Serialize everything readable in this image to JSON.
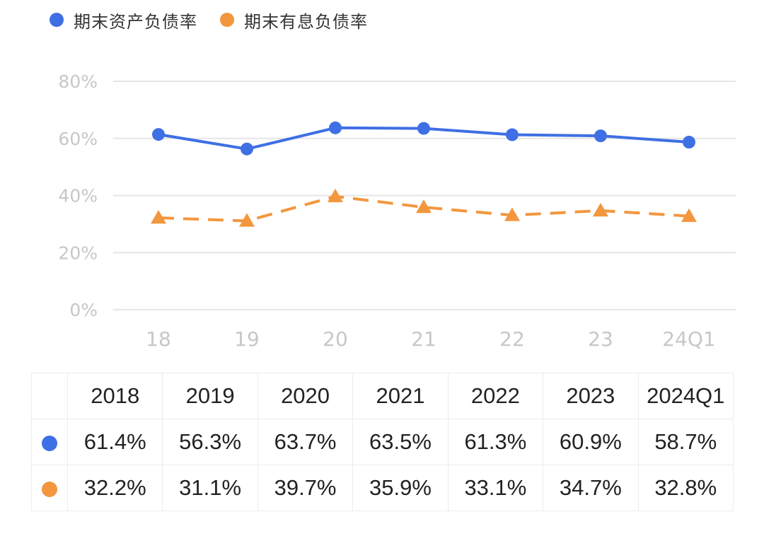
{
  "colors": {
    "asset_liability": "#3f6fe4",
    "interest_bearing": "#f2973e",
    "grid": "#e6e6e6",
    "axis_text": "#c7c7c7"
  },
  "legend": {
    "series1": "期末资产负债率",
    "series2": "期末有息负债率"
  },
  "chart_data": {
    "type": "line",
    "categories": [
      "18",
      "19",
      "20",
      "21",
      "22",
      "23",
      "24Q1"
    ],
    "series": [
      {
        "name": "期末资产负债率",
        "values": [
          61.4,
          56.3,
          63.7,
          63.5,
          61.3,
          60.9,
          58.7
        ],
        "line_style": "solid",
        "marker": "circle"
      },
      {
        "name": "期末有息负债率",
        "values": [
          32.2,
          31.1,
          39.7,
          35.9,
          33.1,
          34.7,
          32.8
        ],
        "line_style": "dashed",
        "marker": "triangle"
      }
    ],
    "ylim": [
      0,
      80
    ],
    "yticks": [
      "0%",
      "20%",
      "40%",
      "60%",
      "80%"
    ],
    "grid": true,
    "legend_position": "top-left"
  },
  "table": {
    "headers": [
      "2018",
      "2019",
      "2020",
      "2021",
      "2022",
      "2023",
      "2024Q1"
    ],
    "row1": [
      "61.4%",
      "56.3%",
      "63.7%",
      "63.5%",
      "61.3%",
      "60.9%",
      "58.7%"
    ],
    "row2": [
      "32.2%",
      "31.1%",
      "39.7%",
      "35.9%",
      "33.1%",
      "34.7%",
      "32.8%"
    ]
  }
}
